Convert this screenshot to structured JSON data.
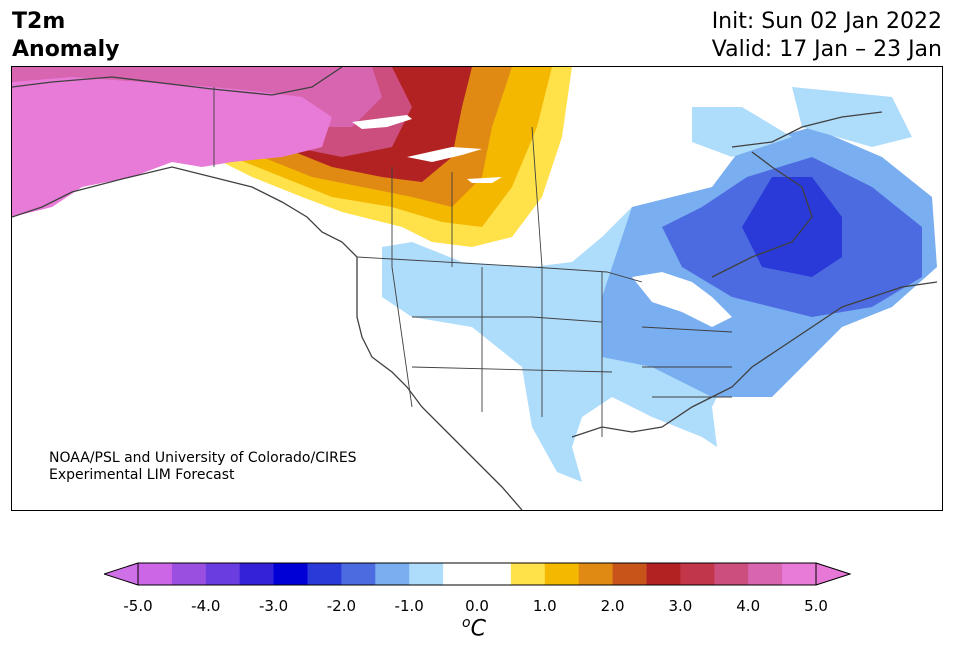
{
  "title": {
    "left": "T2m\nAnomaly",
    "init": "Init: Sun 02 Jan 2022",
    "valid": "Valid: 17 Jan – 23 Jan"
  },
  "credit": {
    "line1": "NOAA/PSL and University of Colorado/CIRES",
    "line2": "Experimental LIM Forecast"
  },
  "colorbar": {
    "unit_base": "C",
    "unit_prefix": "o",
    "ticks": [
      "-5.0",
      "-4.0",
      "-3.0",
      "-2.0",
      "-1.0",
      "0.0",
      "1.0",
      "2.0",
      "3.0",
      "4.0",
      "5.0"
    ],
    "tick_values": [
      -5,
      -4,
      -3,
      -2,
      -1,
      0,
      1,
      2,
      3,
      4,
      5
    ],
    "bins": [
      {
        "lo": -5.0,
        "hi": -4.5,
        "color": "#cc66e6"
      },
      {
        "lo": -4.5,
        "hi": -4.0,
        "color": "#9a4fe0"
      },
      {
        "lo": -4.0,
        "hi": -3.5,
        "color": "#6a3de0"
      },
      {
        "lo": -3.5,
        "hi": -3.0,
        "color": "#3322d8"
      },
      {
        "lo": -3.0,
        "hi": -2.5,
        "color": "#0000d6"
      },
      {
        "lo": -2.5,
        "hi": -2.0,
        "color": "#2a3ad8"
      },
      {
        "lo": -2.0,
        "hi": -1.5,
        "color": "#4c6be0"
      },
      {
        "lo": -1.5,
        "hi": -1.0,
        "color": "#79aef0"
      },
      {
        "lo": -1.0,
        "hi": -0.5,
        "color": "#aedcfb"
      },
      {
        "lo": -0.5,
        "hi": 0.5,
        "color": "#ffffff"
      },
      {
        "lo": 0.5,
        "hi": 1.0,
        "color": "#ffe14a"
      },
      {
        "lo": 1.0,
        "hi": 1.5,
        "color": "#f4b800"
      },
      {
        "lo": 1.5,
        "hi": 2.0,
        "color": "#e08a14"
      },
      {
        "lo": 2.0,
        "hi": 2.5,
        "color": "#c8541a"
      },
      {
        "lo": 2.5,
        "hi": 3.0,
        "color": "#b22222"
      },
      {
        "lo": 3.0,
        "hi": 3.5,
        "color": "#c2364a"
      },
      {
        "lo": 3.5,
        "hi": 4.0,
        "color": "#cc4e7e"
      },
      {
        "lo": 4.0,
        "hi": 4.5,
        "color": "#d865b0"
      },
      {
        "lo": 4.5,
        "hi": 5.0,
        "color": "#e87ad8"
      }
    ],
    "under_color": "#d070e8",
    "over_color": "#e878d8"
  },
  "map": {
    "water_color": "#ffffff",
    "coast_color": "#404040",
    "regions": [
      {
        "name": "alaska-strong-warm",
        "anomaly": 5.0
      },
      {
        "name": "northwest-canada-warm",
        "anomaly": 3.0
      },
      {
        "name": "prairie-warm",
        "anomaly": 1.0
      },
      {
        "name": "western-us-cool",
        "anomaly": -1.0
      },
      {
        "name": "great-lakes-cool",
        "anomaly": -2.0
      },
      {
        "name": "quebec-cold",
        "anomaly": -3.0
      }
    ]
  }
}
